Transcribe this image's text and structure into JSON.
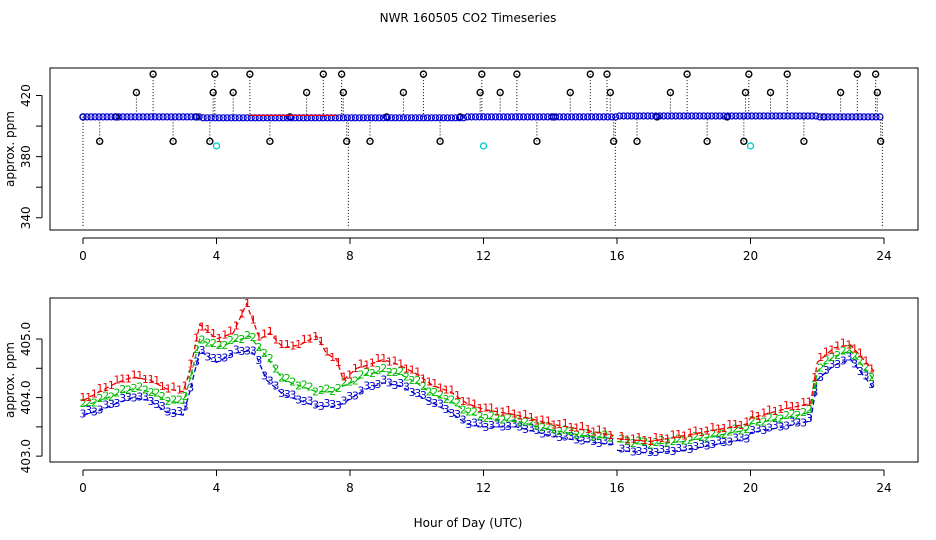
{
  "figure": {
    "title": "NWR  160505  CO2 Timeseries",
    "xlabel": "Hour of Day (UTC)"
  },
  "chart_data": [
    {
      "type": "scatter",
      "ylabel": "approx. ppm",
      "xlim": [
        0,
        24
      ],
      "ylim": [
        332,
        438
      ],
      "reversed_y": true,
      "x_ticks": [
        0,
        4,
        8,
        12,
        16,
        20,
        24
      ],
      "x_tick_labels": [
        "0",
        "4",
        "8",
        "12",
        "16",
        "20",
        "24"
      ],
      "y_ticks": [
        340,
        360,
        380,
        400,
        420
      ],
      "y_tick_labels": [
        "340",
        "",
        "380",
        "",
        "420"
      ],
      "baseline": 406,
      "series": [
        {
          "marker": "circle-open",
          "color": "#000000",
          "spikes": [
            {
              "x": 0.0,
              "y": 406
            },
            {
              "x": 0.5,
              "y": 390
            },
            {
              "x": 1.0,
              "y": 406
            },
            {
              "x": 1.6,
              "y": 422
            },
            {
              "x": 2.1,
              "y": 434
            },
            {
              "x": 2.7,
              "y": 390
            },
            {
              "x": 3.4,
              "y": 406
            },
            {
              "x": 3.8,
              "y": 390
            },
            {
              "x": 3.9,
              "y": 422
            },
            {
              "x": 3.95,
              "y": 434
            },
            {
              "x": 4.5,
              "y": 422
            },
            {
              "x": 5.0,
              "y": 434
            },
            {
              "x": 5.6,
              "y": 390
            },
            {
              "x": 6.2,
              "y": 406
            },
            {
              "x": 6.7,
              "y": 422
            },
            {
              "x": 7.2,
              "y": 434
            },
            {
              "x": 7.75,
              "y": 434
            },
            {
              "x": 7.8,
              "y": 422
            },
            {
              "x": 7.9,
              "y": 390
            },
            {
              "x": 8.6,
              "y": 390
            },
            {
              "x": 9.1,
              "y": 406
            },
            {
              "x": 9.6,
              "y": 422
            },
            {
              "x": 10.2,
              "y": 434
            },
            {
              "x": 10.7,
              "y": 390
            },
            {
              "x": 11.3,
              "y": 406
            },
            {
              "x": 11.9,
              "y": 422
            },
            {
              "x": 11.95,
              "y": 434
            },
            {
              "x": 12.5,
              "y": 422
            },
            {
              "x": 13.0,
              "y": 434
            },
            {
              "x": 13.6,
              "y": 390
            },
            {
              "x": 14.1,
              "y": 406
            },
            {
              "x": 14.6,
              "y": 422
            },
            {
              "x": 15.2,
              "y": 434
            },
            {
              "x": 15.7,
              "y": 434
            },
            {
              "x": 15.8,
              "y": 422
            },
            {
              "x": 15.9,
              "y": 390
            },
            {
              "x": 16.6,
              "y": 390
            },
            {
              "x": 17.2,
              "y": 406
            },
            {
              "x": 17.6,
              "y": 422
            },
            {
              "x": 18.1,
              "y": 434
            },
            {
              "x": 18.7,
              "y": 390
            },
            {
              "x": 19.3,
              "y": 406
            },
            {
              "x": 19.8,
              "y": 390
            },
            {
              "x": 19.85,
              "y": 422
            },
            {
              "x": 19.95,
              "y": 434
            },
            {
              "x": 20.6,
              "y": 422
            },
            {
              "x": 21.1,
              "y": 434
            },
            {
              "x": 21.6,
              "y": 390
            },
            {
              "x": 22.2,
              "y": 406
            },
            {
              "x": 22.7,
              "y": 422
            },
            {
              "x": 23.2,
              "y": 434
            },
            {
              "x": 23.75,
              "y": 434
            },
            {
              "x": 23.8,
              "y": 422
            },
            {
              "x": 23.9,
              "y": 390
            }
          ]
        },
        {
          "marker": "circle-open",
          "color": "#00cccc",
          "points": [
            {
              "x": 4.0,
              "y": 387
            },
            {
              "x": 12.0,
              "y": 387
            },
            {
              "x": 20.0,
              "y": 387
            }
          ]
        },
        {
          "marker": "circle-open",
          "color": "#0000cc",
          "line_y": 406
        }
      ]
    },
    {
      "type": "line",
      "ylabel": "approx. ppm",
      "xlim": [
        0,
        24
      ],
      "ylim": [
        402.9,
        405.7
      ],
      "x_ticks": [
        0,
        4,
        8,
        12,
        16,
        20,
        24
      ],
      "x_tick_labels": [
        "0",
        "4",
        "8",
        "12",
        "16",
        "20",
        "24"
      ],
      "y_ticks": [
        403.0,
        403.5,
        404.0,
        404.5,
        405.0
      ],
      "y_tick_labels": [
        "403.0",
        "",
        "404.0",
        "",
        "405.0"
      ],
      "series": [
        {
          "label": "3",
          "color": "#0000cc",
          "x": [
            0,
            0.5,
            1,
            1.5,
            2,
            2.5,
            3,
            3.2,
            3.5,
            4,
            4.5,
            5,
            5.2,
            5.5,
            6,
            6.5,
            7,
            7.5,
            7.8,
            8.2,
            8.5,
            9,
            9.5,
            10,
            10.5,
            11,
            11.5,
            12,
            13,
            14,
            15,
            15.9,
            16,
            17,
            18,
            19,
            19.9,
            20,
            21,
            21.8,
            22,
            22.5,
            23,
            23.7
          ],
          "y": [
            403.7,
            403.78,
            403.9,
            404.0,
            403.95,
            403.75,
            403.7,
            404.1,
            404.8,
            404.6,
            404.75,
            404.8,
            404.7,
            404.3,
            404.05,
            403.95,
            403.85,
            403.85,
            403.9,
            404.05,
            404.15,
            404.25,
            404.2,
            404.05,
            403.9,
            403.75,
            403.55,
            403.5,
            403.5,
            403.35,
            403.25,
            403.2,
            403.1,
            403.05,
            403.1,
            403.2,
            403.3,
            403.4,
            403.5,
            403.6,
            404.3,
            404.55,
            404.65,
            404.15
          ]
        },
        {
          "label": "2",
          "color": "#00bb00",
          "x": [
            0,
            0.5,
            1,
            1.5,
            2,
            2.5,
            3,
            3.2,
            3.5,
            4,
            4.5,
            5,
            5.2,
            5.5,
            6,
            6.5,
            7,
            7.5,
            7.8,
            8.2,
            8.5,
            9,
            9.5,
            10,
            10.5,
            11,
            11.5,
            12,
            13,
            14,
            15,
            15.9,
            16,
            17,
            18,
            19,
            19.9,
            20,
            21,
            21.8,
            22,
            22.5,
            23,
            23.7
          ],
          "y": [
            403.85,
            403.95,
            404.05,
            404.15,
            404.1,
            403.95,
            403.9,
            404.3,
            405.0,
            404.85,
            404.95,
            405.05,
            404.9,
            404.7,
            404.3,
            404.2,
            404.1,
            404.1,
            404.2,
            404.3,
            404.4,
            404.45,
            404.4,
            404.25,
            404.05,
            403.95,
            403.75,
            403.65,
            403.6,
            403.45,
            403.35,
            403.3,
            403.25,
            403.2,
            403.25,
            403.35,
            403.45,
            403.55,
            403.65,
            403.75,
            404.45,
            404.7,
            404.8,
            404.3
          ]
        },
        {
          "label": "1",
          "color": "#ee0000",
          "x": [
            0,
            0.5,
            1,
            1.5,
            2,
            2.5,
            3,
            3.2,
            3.5,
            4,
            4.5,
            4.9,
            5.1,
            5.3,
            5.6,
            6,
            6.5,
            7,
            7.3,
            7.6,
            7.8,
            8.2,
            8.5,
            9,
            9.5,
            10,
            10.5,
            11,
            11.5,
            12,
            13,
            14,
            15,
            15.9,
            16,
            17,
            18,
            19,
            19.9,
            20,
            21,
            21.8,
            22,
            22.5,
            23,
            23.7
          ],
          "y": [
            403.95,
            404.1,
            404.25,
            404.35,
            404.3,
            404.15,
            404.1,
            404.45,
            405.25,
            405.0,
            405.1,
            405.6,
            405.3,
            405.0,
            405.1,
            404.85,
            404.9,
            405.05,
            404.75,
            404.65,
            404.3,
            404.5,
            404.55,
            404.65,
            404.55,
            404.4,
            404.2,
            404.1,
            403.9,
            403.8,
            403.7,
            403.55,
            403.45,
            403.35,
            403.3,
            403.25,
            403.35,
            403.45,
            403.55,
            403.65,
            403.8,
            403.9,
            404.6,
            404.85,
            404.9,
            404.45
          ]
        }
      ]
    }
  ]
}
